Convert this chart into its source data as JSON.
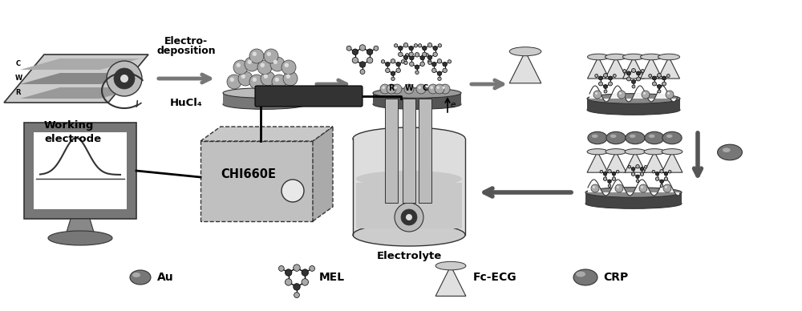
{
  "bg_color": "#ffffff",
  "electrode_label": "Working\nelectrode",
  "electro_line1": "Electro-",
  "electro_line2": "deposition",
  "hucl4_text": "HuCl₄",
  "chi_label": "CHI660E",
  "electrolyte_label": "Electrolyte",
  "legend_items": [
    "Au",
    "MEL",
    "Fc-ECG",
    "CRP"
  ],
  "gray_dark": "#333333",
  "gray_med": "#777777",
  "gray_light": "#aaaaaa",
  "gray_lighter": "#cccccc",
  "gray_lightest": "#eeeeee",
  "gray_electrode": "#999999",
  "gray_disk_top": "#bbbbbb",
  "gray_disk_side": "#666666"
}
